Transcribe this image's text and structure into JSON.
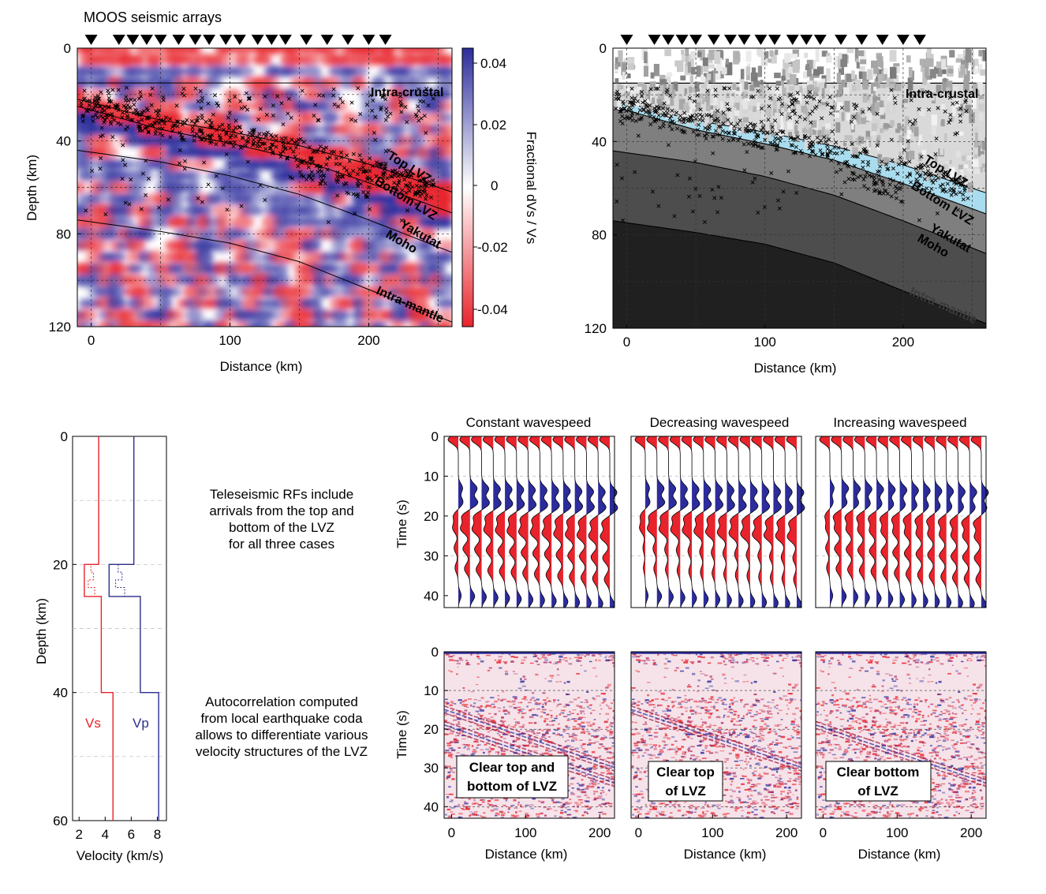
{
  "header": {
    "title": "MOOS seismic arrays"
  },
  "colors": {
    "pos": "#2c2c9c",
    "neg": "#e8232b",
    "lvz": "#a9dcee",
    "vs": "#e8232b",
    "vp": "#2e2e8e"
  },
  "chart_data": [
    {
      "id": "tomography-section",
      "type": "heatmap",
      "xlabel": "Distance (km)",
      "ylabel": "Depth (km)",
      "xlim": [
        -10,
        260
      ],
      "ylim": [
        120,
        0
      ],
      "xticks": [
        "0",
        "100",
        "200"
      ],
      "yticks": [
        "0",
        "40",
        "80",
        "120"
      ],
      "colorbar": {
        "label": "Fractional dVs / Vs",
        "ticks": [
          "0.04",
          "0.02",
          "0",
          "-0.02",
          "-0.04"
        ]
      },
      "station_count": 18,
      "interfaces": [
        {
          "name": "Intra-crustal",
          "x": [
            -10,
            260
          ],
          "depth": [
            15,
            15
          ]
        },
        {
          "name": "Top LVZ",
          "x": [
            -10,
            50,
            100,
            150,
            200,
            260
          ],
          "depth": [
            22,
            31,
            36,
            42,
            50,
            62
          ]
        },
        {
          "name": "Bottom LVZ",
          "x": [
            -10,
            50,
            100,
            150,
            200,
            260
          ],
          "depth": [
            25,
            35,
            41,
            48,
            58,
            71
          ]
        },
        {
          "name": "Yakutat Moho",
          "x": [
            -10,
            50,
            100,
            150,
            200,
            260
          ],
          "depth": [
            44,
            49,
            55,
            63,
            74,
            88
          ]
        },
        {
          "name": "Intra-mantle",
          "x": [
            -10,
            50,
            100,
            150,
            200,
            260
          ],
          "depth": [
            74,
            79,
            84,
            92,
            104,
            118
          ]
        }
      ]
    },
    {
      "id": "schematic-section",
      "type": "area",
      "xlabel": "Distance (km)",
      "xlim": [
        -10,
        260
      ],
      "ylim": [
        120,
        0
      ],
      "xticks": [
        "0",
        "100",
        "200"
      ],
      "yticks": [
        "0",
        "40",
        "80",
        "120"
      ],
      "station_count": 18,
      "labels": [
        "Intra-crustal",
        "Top LVZ",
        "Bottom LVZ",
        "Yakutat Moho",
        "Intra-mantle"
      ]
    },
    {
      "id": "velocity-profile",
      "type": "line",
      "xlabel": "Velocity (km/s)",
      "ylabel": "Depth (km)",
      "xlim": [
        1.5,
        8.7
      ],
      "ylim": [
        60,
        0
      ],
      "xticks": [
        "2",
        "4",
        "6",
        "8"
      ],
      "yticks": [
        "0",
        "20",
        "40",
        "60"
      ],
      "series": [
        {
          "name": "Vs",
          "points": [
            [
              3.5,
              0
            ],
            [
              3.5,
              20
            ],
            [
              2.4,
              20
            ],
            [
              2.4,
              25
            ],
            [
              3.7,
              25
            ],
            [
              3.7,
              40
            ],
            [
              4.6,
              40
            ],
            [
              4.6,
              60
            ]
          ]
        },
        {
          "name": "Vp",
          "points": [
            [
              6.2,
              0
            ],
            [
              6.2,
              20
            ],
            [
              4.3,
              20
            ],
            [
              4.3,
              25
            ],
            [
              6.7,
              25
            ],
            [
              6.7,
              40
            ],
            [
              8.1,
              40
            ],
            [
              8.1,
              60
            ]
          ]
        }
      ]
    },
    {
      "id": "receiver-functions",
      "type": "line",
      "ylabel": "Time (s)",
      "ylim": [
        43,
        0
      ],
      "yticks": [
        "0",
        "10",
        "20",
        "30",
        "40"
      ],
      "panels": [
        {
          "title": "Constant wavespeed",
          "traces": 14
        },
        {
          "title": "Decreasing wavespeed",
          "traces": 14
        },
        {
          "title": "Increasing wavespeed",
          "traces": 14
        }
      ]
    },
    {
      "id": "autocorrelations",
      "type": "heatmap",
      "xlabel": "Distance (km)",
      "ylabel": "Time (s)",
      "xlim": [
        -10,
        220
      ],
      "ylim": [
        43,
        0
      ],
      "xticks": [
        "0",
        "100",
        "200"
      ],
      "yticks": [
        "0",
        "10",
        "20",
        "30",
        "40"
      ],
      "panels": [
        {
          "annotation": [
            "Clear top and",
            "bottom of LVZ"
          ]
        },
        {
          "annotation": [
            "Clear top",
            "of LVZ"
          ]
        },
        {
          "annotation": [
            "Clear bottom",
            "of LVZ"
          ]
        }
      ]
    }
  ],
  "notes": {
    "rf": [
      "Teleseismic RFs include",
      "arrivals from the top and",
      "bottom of the LVZ",
      "for all three cases"
    ],
    "ac": [
      "Autocorrelation computed",
      "from local earthquake coda",
      "allows to differentiate various",
      "velocity structures of the LVZ"
    ]
  }
}
